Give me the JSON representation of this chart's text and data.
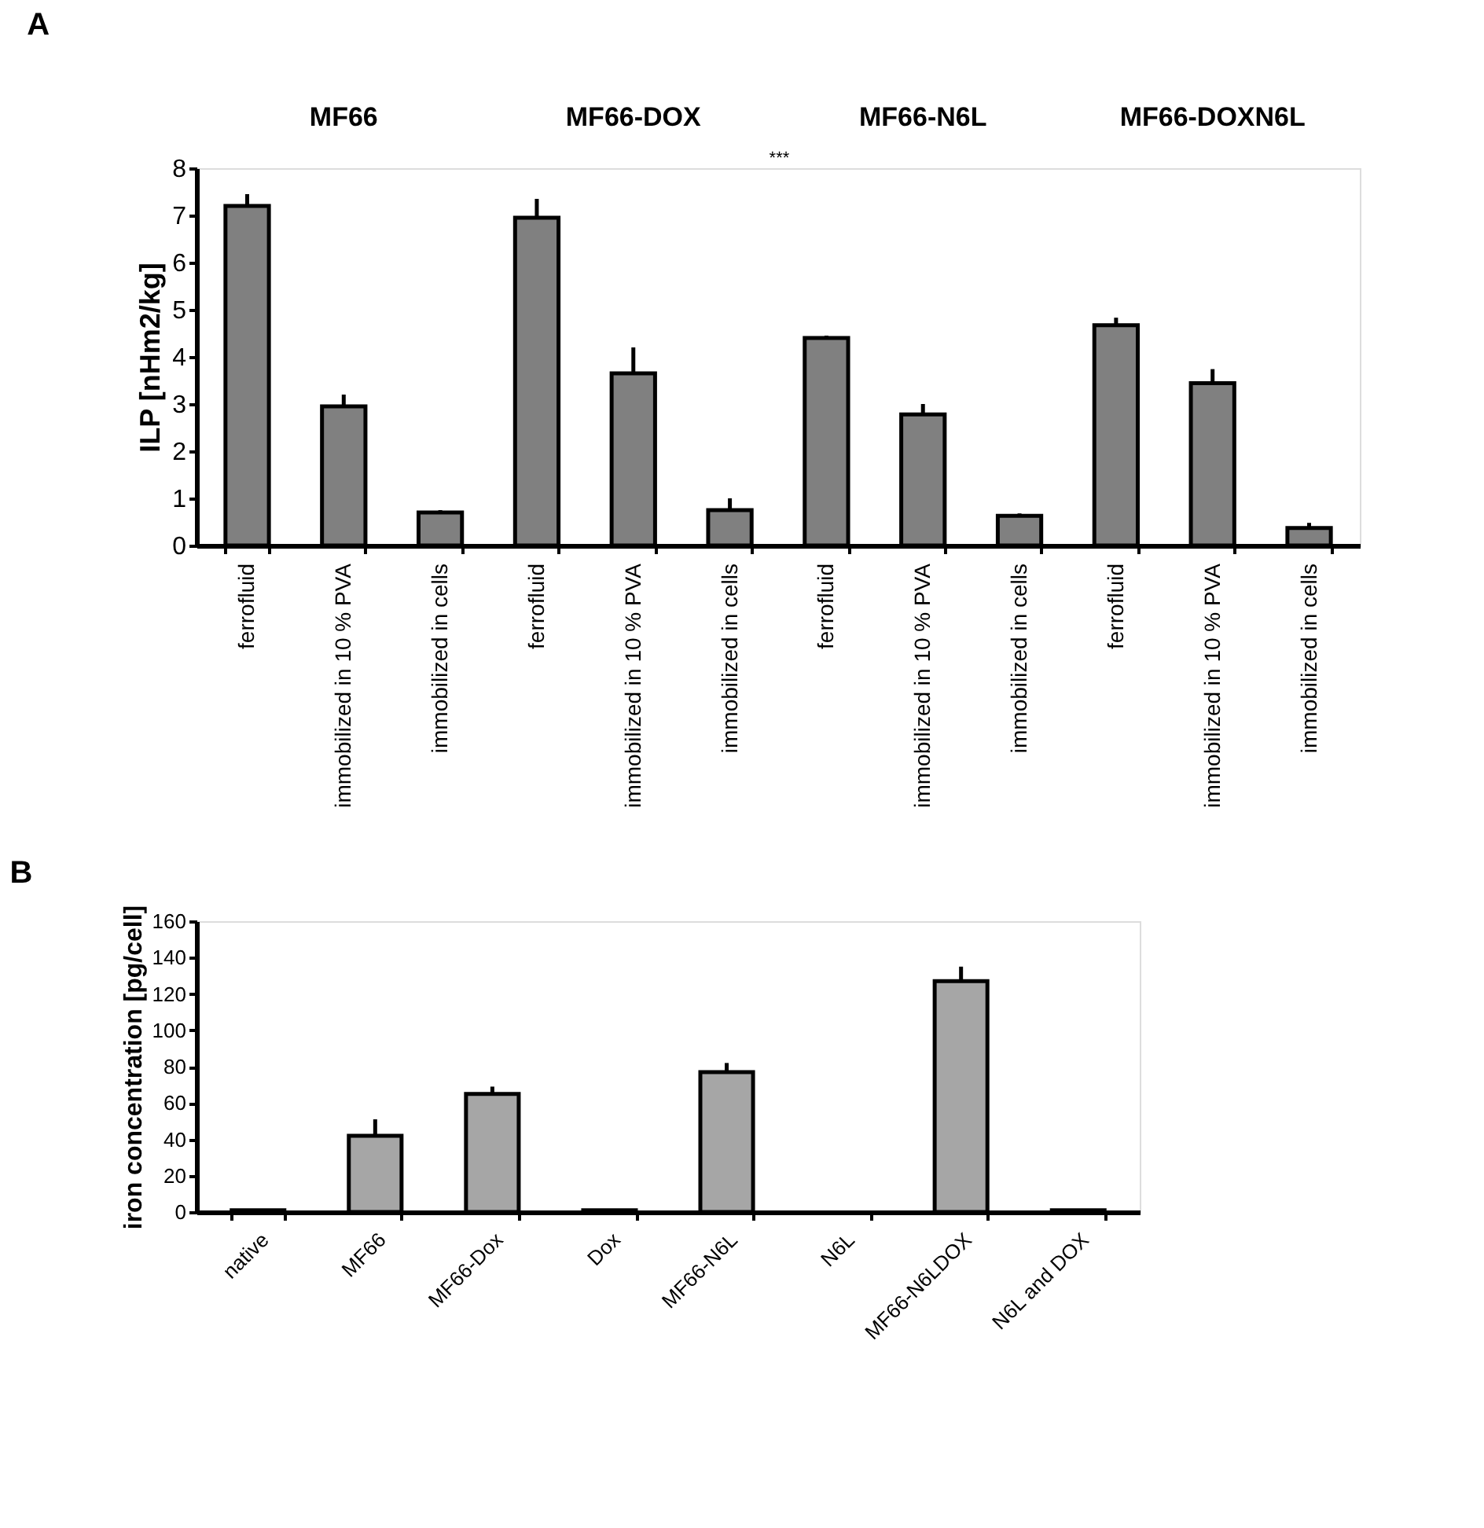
{
  "chart_data": [
    {
      "type": "bar",
      "title": "A",
      "ylabel": "ILP [nHm2/kg]",
      "categories": [
        "ferrofluid",
        "immobilized in 10 % PVA",
        "immobilized in cells",
        "ferrofluid",
        "immobilized in 10 % PVA",
        "immobilized in cells",
        "ferrofluid",
        "immobilized in 10 % PVA",
        "immobilized in cells",
        "ferrofluid",
        "immobilized in 10 % PVA",
        "immobilized in cells"
      ],
      "values": [
        7.2,
        2.95,
        0.7,
        6.95,
        3.65,
        0.75,
        4.4,
        2.78,
        0.63,
        4.67,
        3.44,
        0.37
      ],
      "errors": [
        0.25,
        0.25,
        0.05,
        0.4,
        0.55,
        0.25,
        0.05,
        0.22,
        0.05,
        0.16,
        0.3,
        0.11
      ],
      "color": "#808080",
      "ylim": [
        0,
        8
      ],
      "yticks": [
        0,
        1,
        2,
        3,
        4,
        5,
        6,
        7,
        8
      ],
      "annotations": [
        "MF66",
        "MF66-DOX",
        "MF66-N6L",
        "MF66-DOXN6L",
        "***"
      ]
    },
    {
      "type": "bar",
      "title": "B",
      "ylabel": "iron concentration [pg/cell]",
      "categories": [
        "native",
        "MF66",
        "MF66-Dox",
        "Dox",
        "MF66-N6L",
        "N6L",
        "MF66-N6LDOX",
        "N6L and DOX"
      ],
      "values": [
        1,
        42,
        65,
        1,
        77,
        0,
        127,
        1
      ],
      "errors": [
        null,
        9,
        4,
        null,
        5,
        null,
        8,
        null
      ],
      "color": "#a6a6a6",
      "ylim": [
        0,
        160
      ],
      "yticks": [
        0,
        20,
        40,
        60,
        80,
        100,
        120,
        140,
        160
      ]
    }
  ]
}
